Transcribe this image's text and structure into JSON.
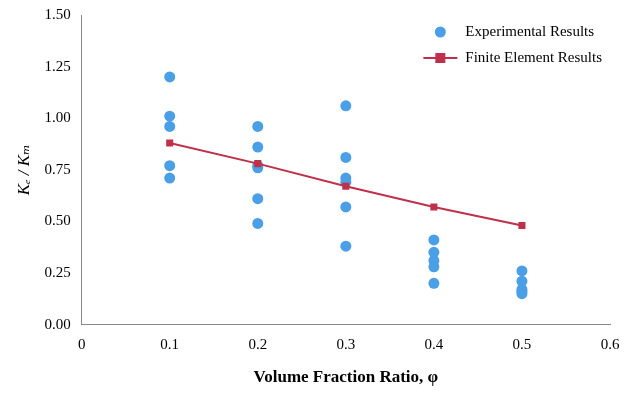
{
  "chart_data": {
    "type": "scatter",
    "x_label": "Volume Fraction Ratio, φ",
    "y_label": "Kₑ / Kₘ",
    "xlim": [
      0,
      0.6
    ],
    "xticks": [
      0,
      0.1,
      0.2,
      0.3,
      0.4,
      0.5,
      0.6
    ],
    "ylim": [
      0,
      1.5
    ],
    "yticks": [
      {
        "value": 0,
        "label": "0.00"
      },
      {
        "value": 0.25,
        "label": "0.25"
      },
      {
        "value": 0.5,
        "label": "0.50"
      },
      {
        "value": 0.75,
        "label": "0.75"
      },
      {
        "value": 1,
        "label": "1.00"
      },
      {
        "value": 1.25,
        "label": "1.25"
      },
      {
        "value": 1.5,
        "label": "1.50"
      }
    ],
    "grid": false,
    "legend": "top-right",
    "series": [
      {
        "name": "Experimental Results",
        "type": "scatter",
        "marker": "circle",
        "color": "#4a9fe6",
        "x": [
          0.1,
          0.1,
          0.1,
          0.1,
          0.1,
          0.2,
          0.2,
          0.2,
          0.2,
          0.2,
          0.2,
          0.3,
          0.3,
          0.3,
          0.3,
          0.3,
          0.3,
          0.4,
          0.4,
          0.4,
          0.4,
          0.4,
          0.5,
          0.5,
          0.5,
          0.5,
          0.5
        ],
        "values": [
          1.2,
          1.01,
          0.96,
          0.77,
          0.71,
          0.96,
          0.86,
          0.77,
          0.76,
          0.61,
          0.49,
          1.06,
          0.81,
          0.71,
          0.69,
          0.57,
          0.38,
          0.41,
          0.35,
          0.31,
          0.28,
          0.2,
          0.26,
          0.21,
          0.17,
          0.16,
          0.15
        ]
      },
      {
        "name": "Finite Element Results",
        "type": "line",
        "marker": "square",
        "line_style": "solid",
        "color": "#c0304a",
        "x": [
          0.1,
          0.2,
          0.3,
          0.4,
          0.5
        ],
        "values": [
          0.88,
          0.78,
          0.67,
          0.57,
          0.48
        ]
      }
    ]
  }
}
